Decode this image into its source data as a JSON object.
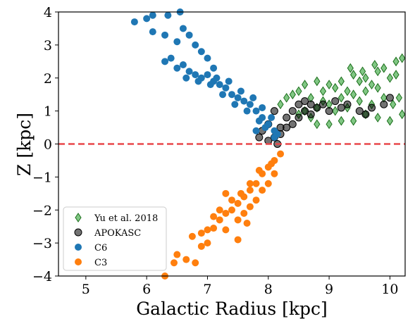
{
  "chart_data": {
    "type": "scatter",
    "title": "",
    "xlabel": "Galactic Radius [kpc]",
    "ylabel": "Z [kpc]",
    "xlim": [
      4.55,
      10.25
    ],
    "ylim": [
      -4,
      4
    ],
    "x_ticks": [
      "5",
      "6",
      "7",
      "8",
      "9",
      "10"
    ],
    "y_ticks": [
      "4",
      "3",
      "2",
      "1",
      "0",
      "−1",
      "−2",
      "−3",
      "−4"
    ],
    "grid": false,
    "legend_position": "lower-left",
    "reference_line": {
      "y": 0,
      "style": "dashed",
      "color": "#e8474a"
    },
    "series": [
      {
        "name": "Yu et al. 2018",
        "marker": "diamond",
        "color": "#4caf50",
        "edge": "#1b6e1b",
        "points": [
          [
            8.5,
            0.9
          ],
          [
            8.6,
            1.0
          ],
          [
            8.7,
            0.8
          ],
          [
            8.8,
            1.1
          ],
          [
            8.9,
            1.3
          ],
          [
            9.0,
            1.2
          ],
          [
            9.1,
            1.0
          ],
          [
            9.2,
            1.4
          ],
          [
            9.3,
            1.1
          ],
          [
            9.4,
            1.5
          ],
          [
            9.5,
            1.3
          ],
          [
            9.6,
            1.6
          ],
          [
            9.7,
            1.2
          ],
          [
            9.8,
            1.7
          ],
          [
            9.9,
            1.4
          ],
          [
            10.0,
            2.0
          ],
          [
            10.1,
            2.1
          ],
          [
            10.2,
            2.6
          ],
          [
            9.9,
            2.3
          ],
          [
            9.8,
            2.2
          ],
          [
            9.6,
            2.0
          ],
          [
            9.4,
            2.1
          ],
          [
            9.2,
            1.9
          ],
          [
            9.0,
            1.8
          ],
          [
            8.8,
            1.9
          ],
          [
            8.6,
            1.8
          ],
          [
            8.5,
            1.6
          ],
          [
            8.4,
            1.5
          ],
          [
            8.3,
            1.4
          ],
          [
            8.2,
            1.2
          ],
          [
            9.3,
            1.6
          ],
          [
            9.5,
            1.9
          ],
          [
            9.7,
            1.8
          ],
          [
            10.05,
            1.2
          ],
          [
            10.15,
            1.4
          ],
          [
            10.2,
            0.9
          ],
          [
            10.0,
            0.7
          ],
          [
            9.8,
            0.8
          ],
          [
            9.6,
            0.9
          ],
          [
            9.4,
            0.7
          ],
          [
            9.2,
            0.7
          ],
          [
            9.0,
            0.6
          ],
          [
            8.8,
            0.6
          ],
          [
            8.7,
            1.4
          ],
          [
            8.9,
            1.6
          ],
          [
            9.1,
            1.7
          ],
          [
            9.35,
            2.3
          ],
          [
            9.55,
            2.2
          ],
          [
            9.75,
            2.4
          ],
          [
            10.1,
            2.5
          ]
        ]
      },
      {
        "name": "APOKASC",
        "marker": "circle",
        "color": "#000000",
        "edge": "#000000",
        "points": [
          [
            8.0,
            0.1
          ],
          [
            8.1,
            0.2
          ],
          [
            8.2,
            0.3
          ],
          [
            8.3,
            0.5
          ],
          [
            8.4,
            0.6
          ],
          [
            8.5,
            0.8
          ],
          [
            8.6,
            1.0
          ],
          [
            8.7,
            0.9
          ],
          [
            8.8,
            1.1
          ],
          [
            8.9,
            1.2
          ],
          [
            9.0,
            1.0
          ],
          [
            9.1,
            1.3
          ],
          [
            9.2,
            1.1
          ],
          [
            9.3,
            1.2
          ],
          [
            9.5,
            1.0
          ],
          [
            9.7,
            1.1
          ],
          [
            9.9,
            1.2
          ],
          [
            10.0,
            1.4
          ],
          [
            9.6,
            0.9
          ],
          [
            8.0,
            0.6
          ],
          [
            7.9,
            0.4
          ],
          [
            7.85,
            0.2
          ],
          [
            8.15,
            0.0
          ],
          [
            8.2,
            0.5
          ],
          [
            8.3,
            0.8
          ],
          [
            8.4,
            1.0
          ],
          [
            8.5,
            1.2
          ],
          [
            8.6,
            1.3
          ],
          [
            8.7,
            1.2
          ],
          [
            8.1,
            1.0
          ]
        ]
      },
      {
        "name": "C6",
        "marker": "circle",
        "color": "#1f77b4",
        "edge": "#1f77b4",
        "points": [
          [
            5.8,
            3.7
          ],
          [
            6.0,
            3.8
          ],
          [
            6.1,
            3.9
          ],
          [
            6.35,
            3.9
          ],
          [
            6.55,
            4.0
          ],
          [
            6.1,
            3.4
          ],
          [
            6.3,
            3.3
          ],
          [
            6.5,
            3.1
          ],
          [
            6.6,
            3.5
          ],
          [
            6.7,
            3.3
          ],
          [
            6.8,
            3.0
          ],
          [
            6.9,
            2.8
          ],
          [
            7.0,
            2.6
          ],
          [
            7.1,
            2.3
          ],
          [
            6.3,
            2.5
          ],
          [
            6.4,
            2.6
          ],
          [
            6.5,
            2.3
          ],
          [
            6.6,
            2.4
          ],
          [
            6.7,
            2.2
          ],
          [
            6.8,
            2.1
          ],
          [
            6.9,
            2.0
          ],
          [
            7.0,
            2.1
          ],
          [
            7.1,
            1.9
          ],
          [
            7.2,
            1.8
          ],
          [
            7.3,
            1.7
          ],
          [
            7.4,
            1.5
          ],
          [
            7.5,
            1.4
          ],
          [
            7.6,
            1.3
          ],
          [
            7.7,
            1.2
          ],
          [
            7.8,
            1.0
          ],
          [
            7.9,
            0.8
          ],
          [
            8.0,
            0.6
          ],
          [
            8.1,
            0.4
          ],
          [
            8.15,
            0.3
          ],
          [
            7.95,
            0.5
          ],
          [
            7.85,
            0.7
          ],
          [
            7.65,
            1.0
          ],
          [
            7.45,
            1.2
          ],
          [
            7.25,
            1.5
          ],
          [
            7.05,
            1.8
          ],
          [
            6.85,
            1.9
          ],
          [
            6.65,
            2.0
          ],
          [
            7.15,
            2.0
          ],
          [
            7.35,
            1.9
          ],
          [
            7.55,
            1.6
          ],
          [
            7.75,
            1.4
          ],
          [
            7.9,
            1.1
          ],
          [
            8.05,
            0.8
          ],
          [
            8.1,
            0.2
          ],
          [
            7.8,
            0.4
          ]
        ]
      },
      {
        "name": "C3",
        "marker": "circle",
        "color": "#ff7f0e",
        "edge": "#ff7f0e",
        "points": [
          [
            6.3,
            -4.0
          ],
          [
            6.45,
            -3.6
          ],
          [
            6.5,
            -3.35
          ],
          [
            6.65,
            -3.5
          ],
          [
            6.8,
            -3.6
          ],
          [
            6.9,
            -3.1
          ],
          [
            6.75,
            -2.8
          ],
          [
            6.9,
            -2.7
          ],
          [
            7.0,
            -2.6
          ],
          [
            7.1,
            -2.55
          ],
          [
            7.2,
            -2.3
          ],
          [
            7.3,
            -2.1
          ],
          [
            7.4,
            -2.0
          ],
          [
            7.5,
            -1.8
          ],
          [
            7.6,
            -1.6
          ],
          [
            7.7,
            -1.4
          ],
          [
            7.8,
            -1.2
          ],
          [
            7.9,
            -0.9
          ],
          [
            8.0,
            -0.7
          ],
          [
            8.1,
            -0.5
          ],
          [
            8.2,
            -0.3
          ],
          [
            7.3,
            -2.6
          ],
          [
            7.5,
            -2.3
          ],
          [
            7.6,
            -2.1
          ],
          [
            7.7,
            -1.9
          ],
          [
            7.8,
            -1.7
          ],
          [
            7.9,
            -1.4
          ],
          [
            8.0,
            -1.2
          ],
          [
            8.1,
            -0.9
          ],
          [
            7.2,
            -2.0
          ],
          [
            7.4,
            -1.7
          ],
          [
            7.55,
            -1.5
          ],
          [
            7.7,
            -1.2
          ],
          [
            7.85,
            -0.8
          ],
          [
            8.05,
            -0.6
          ],
          [
            7.5,
            -2.9
          ],
          [
            7.0,
            -3.0
          ],
          [
            7.1,
            -2.2
          ],
          [
            7.3,
            -1.5
          ],
          [
            7.65,
            -2.4
          ]
        ]
      }
    ]
  }
}
